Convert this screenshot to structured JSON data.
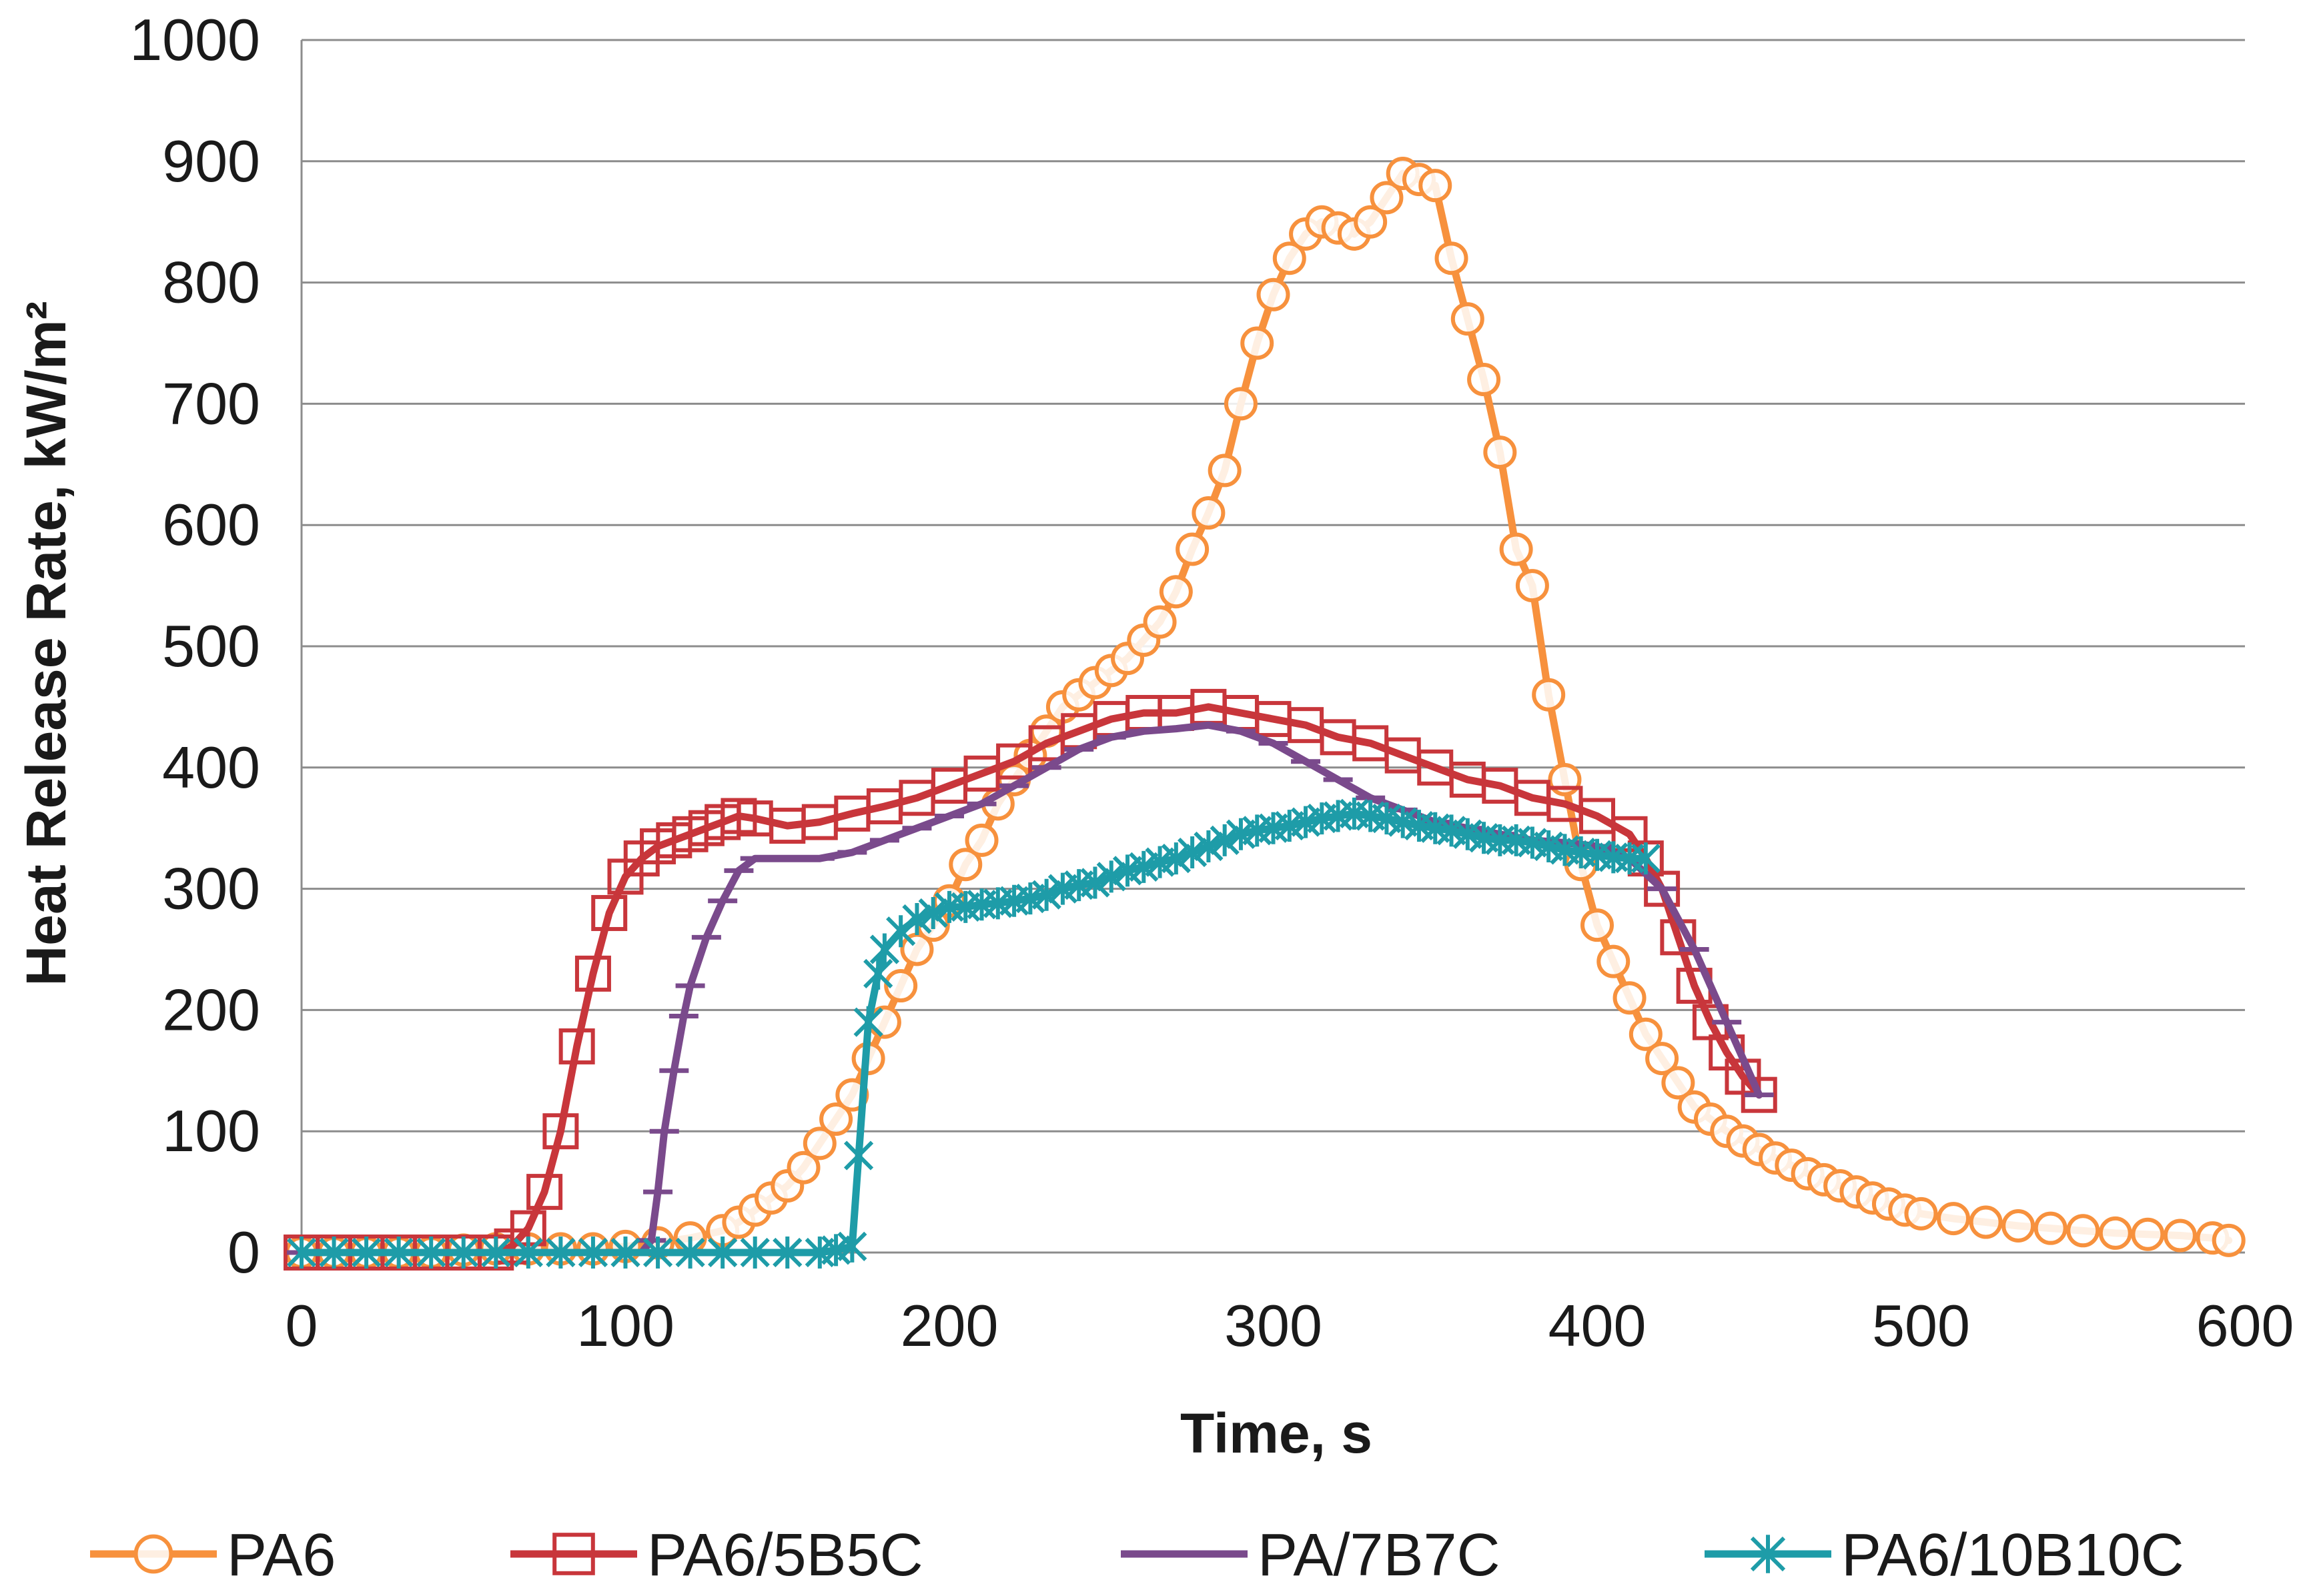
{
  "chart_data": {
    "type": "line",
    "title": "",
    "xlabel": "Time, s",
    "ylabel": "Heat Release Rate, kW/m²",
    "xlim": [
      0,
      600
    ],
    "ylim": [
      0,
      1000
    ],
    "xticks": [
      "0",
      "100",
      "200",
      "300",
      "400",
      "500",
      "600"
    ],
    "yticks": [
      "0",
      "100",
      "200",
      "300",
      "400",
      "500",
      "600",
      "700",
      "800",
      "900",
      "1000"
    ],
    "grid": "horizontal",
    "legend": "bottom",
    "series": [
      {
        "name": "PA6",
        "color": "#F7913D",
        "marker": "circle",
        "x": [
          0,
          10,
          20,
          30,
          40,
          50,
          60,
          70,
          80,
          90,
          100,
          110,
          120,
          130,
          135,
          140,
          145,
          150,
          155,
          160,
          165,
          170,
          175,
          180,
          185,
          190,
          195,
          200,
          205,
          210,
          215,
          220,
          225,
          230,
          235,
          240,
          245,
          250,
          255,
          260,
          265,
          270,
          275,
          280,
          285,
          290,
          295,
          300,
          305,
          310,
          315,
          320,
          325,
          330,
          335,
          340,
          345,
          350,
          355,
          360,
          365,
          370,
          375,
          380,
          385,
          390,
          395,
          400,
          405,
          410,
          415,
          420,
          425,
          430,
          435,
          440,
          445,
          450,
          455,
          460,
          465,
          470,
          475,
          480,
          485,
          490,
          495,
          500,
          510,
          520,
          530,
          540,
          550,
          560,
          570,
          580,
          590,
          595
        ],
        "values": [
          0,
          0,
          0,
          0,
          0,
          2,
          3,
          3,
          3,
          3,
          5,
          8,
          12,
          18,
          25,
          35,
          45,
          55,
          70,
          90,
          110,
          130,
          160,
          190,
          220,
          250,
          270,
          290,
          320,
          340,
          370,
          390,
          410,
          430,
          450,
          460,
          470,
          480,
          490,
          505,
          520,
          545,
          580,
          610,
          645,
          700,
          750,
          790,
          820,
          840,
          850,
          845,
          840,
          850,
          870,
          890,
          885,
          880,
          820,
          770,
          720,
          660,
          580,
          550,
          460,
          390,
          320,
          270,
          240,
          210,
          180,
          160,
          140,
          120,
          110,
          100,
          92,
          85,
          78,
          72,
          65,
          60,
          55,
          50,
          45,
          40,
          35,
          32,
          28,
          25,
          22,
          20,
          18,
          16,
          15,
          14,
          12,
          10
        ]
      },
      {
        "name": "PA6/5B5C",
        "color": "#C8363B",
        "marker": "square",
        "x": [
          0,
          10,
          20,
          30,
          40,
          50,
          60,
          65,
          70,
          75,
          80,
          85,
          90,
          95,
          100,
          105,
          110,
          115,
          120,
          125,
          130,
          135,
          140,
          150,
          160,
          170,
          180,
          190,
          200,
          210,
          220,
          230,
          240,
          250,
          260,
          270,
          280,
          290,
          300,
          310,
          320,
          330,
          340,
          350,
          360,
          370,
          380,
          390,
          400,
          410,
          415,
          420,
          425,
          430,
          435,
          440,
          445,
          450
        ],
        "values": [
          0,
          0,
          0,
          0,
          0,
          0,
          0,
          5,
          20,
          50,
          100,
          170,
          230,
          280,
          310,
          325,
          335,
          340,
          345,
          350,
          355,
          360,
          358,
          352,
          355,
          362,
          368,
          375,
          385,
          395,
          405,
          420,
          430,
          440,
          445,
          445,
          450,
          445,
          440,
          435,
          425,
          420,
          410,
          400,
          390,
          385,
          375,
          370,
          360,
          345,
          325,
          300,
          260,
          220,
          190,
          165,
          145,
          130
        ]
      },
      {
        "name": "PA/7B7C",
        "color": "#7A4A8C",
        "marker": "dash",
        "x": [
          0,
          20,
          40,
          60,
          80,
          100,
          105,
          108,
          110,
          112,
          115,
          118,
          120,
          125,
          130,
          135,
          140,
          150,
          160,
          170,
          180,
          190,
          200,
          210,
          220,
          230,
          240,
          250,
          260,
          270,
          280,
          290,
          300,
          310,
          320,
          330,
          340,
          350,
          360,
          370,
          380,
          390,
          400,
          410,
          420,
          430,
          440,
          450
        ],
        "values": [
          0,
          0,
          0,
          0,
          0,
          0,
          0,
          10,
          50,
          100,
          150,
          195,
          220,
          260,
          290,
          315,
          325,
          325,
          325,
          330,
          340,
          350,
          360,
          370,
          385,
          400,
          415,
          425,
          430,
          432,
          435,
          430,
          420,
          405,
          390,
          375,
          365,
          355,
          350,
          345,
          340,
          338,
          335,
          325,
          300,
          250,
          190,
          130
        ]
      },
      {
        "name": "PA6/10B10C",
        "color": "#1E9CA8",
        "marker": "asterisk",
        "x": [
          0,
          10,
          20,
          30,
          40,
          50,
          60,
          70,
          80,
          90,
          100,
          110,
          120,
          130,
          140,
          150,
          160,
          165,
          170,
          172,
          175,
          178,
          180,
          185,
          190,
          195,
          200,
          205,
          210,
          215,
          220,
          225,
          230,
          235,
          240,
          245,
          250,
          255,
          260,
          265,
          270,
          275,
          280,
          285,
          290,
          295,
          300,
          305,
          310,
          315,
          320,
          325,
          330,
          335,
          340,
          345,
          350,
          355,
          360,
          365,
          370,
          375,
          380,
          385,
          390,
          395,
          400,
          405,
          410,
          415
        ],
        "values": [
          0,
          0,
          0,
          0,
          0,
          0,
          0,
          0,
          0,
          0,
          0,
          0,
          0,
          0,
          0,
          0,
          0,
          2,
          5,
          80,
          190,
          230,
          250,
          265,
          275,
          280,
          285,
          285,
          287,
          288,
          290,
          292,
          295,
          300,
          303,
          305,
          310,
          315,
          318,
          322,
          325,
          330,
          335,
          340,
          345,
          348,
          350,
          352,
          355,
          358,
          360,
          362,
          360,
          358,
          355,
          352,
          350,
          348,
          345,
          342,
          340,
          340,
          338,
          335,
          332,
          330,
          328,
          326,
          325,
          325
        ]
      }
    ]
  }
}
